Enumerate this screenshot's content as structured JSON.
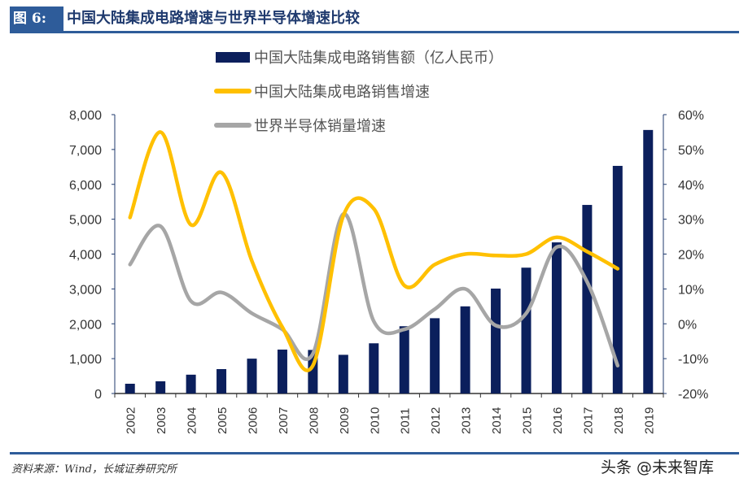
{
  "header": {
    "figure_label": "图 6:",
    "title": "中国大陆集成电路增速与世界半导体增速比较"
  },
  "footer": {
    "source": "资料来源：Wind，长城证券研究所",
    "watermark": "头条 @未来智库"
  },
  "chart_data": {
    "type": "bar+line",
    "categories": [
      "2002",
      "2003",
      "2004",
      "2005",
      "2006",
      "2007",
      "2008",
      "2009",
      "2010",
      "2011",
      "2012",
      "2013",
      "2014",
      "2015",
      "2016",
      "2017",
      "2018",
      "2019"
    ],
    "left_axis": {
      "ylim": [
        0,
        8000
      ],
      "ticks": [
        "0",
        "1,000",
        "2,000",
        "3,000",
        "4,000",
        "5,000",
        "6,000",
        "7,000",
        "8,000"
      ]
    },
    "right_axis": {
      "ylim": [
        -20,
        60
      ],
      "ticks": [
        "-20%",
        "-10%",
        "0%",
        "10%",
        "20%",
        "30%",
        "40%",
        "50%",
        "60%"
      ]
    },
    "legend_position": "top",
    "series": [
      {
        "name": "中国大陆集成电路销售额（亿人民币）",
        "type": "bar",
        "axis": "left",
        "color": "#0b1f5c",
        "values": [
          280,
          350,
          540,
          700,
          1000,
          1260,
          1250,
          1110,
          1440,
          1930,
          2160,
          2500,
          3010,
          3610,
          4335,
          5410,
          6530,
          7560
        ]
      },
      {
        "name": "中国大陆集成电路销售增速",
        "type": "line",
        "axis": "right",
        "color": "#ffc000",
        "values": [
          30.5,
          55,
          28.4,
          43.4,
          18,
          -1,
          -12,
          31,
          33,
          11,
          17,
          20,
          19.6,
          20,
          24.8,
          20.7,
          15.8,
          null
        ]
      },
      {
        "name": "世界半导体销量增速",
        "type": "line",
        "axis": "right",
        "color": "#a6a6a6",
        "values": [
          17,
          28,
          6.5,
          9,
          3,
          -1.6,
          -8.6,
          31.5,
          0.7,
          -1.6,
          4.2,
          10,
          -0.5,
          3,
          22,
          12,
          -12,
          null
        ]
      }
    ]
  }
}
